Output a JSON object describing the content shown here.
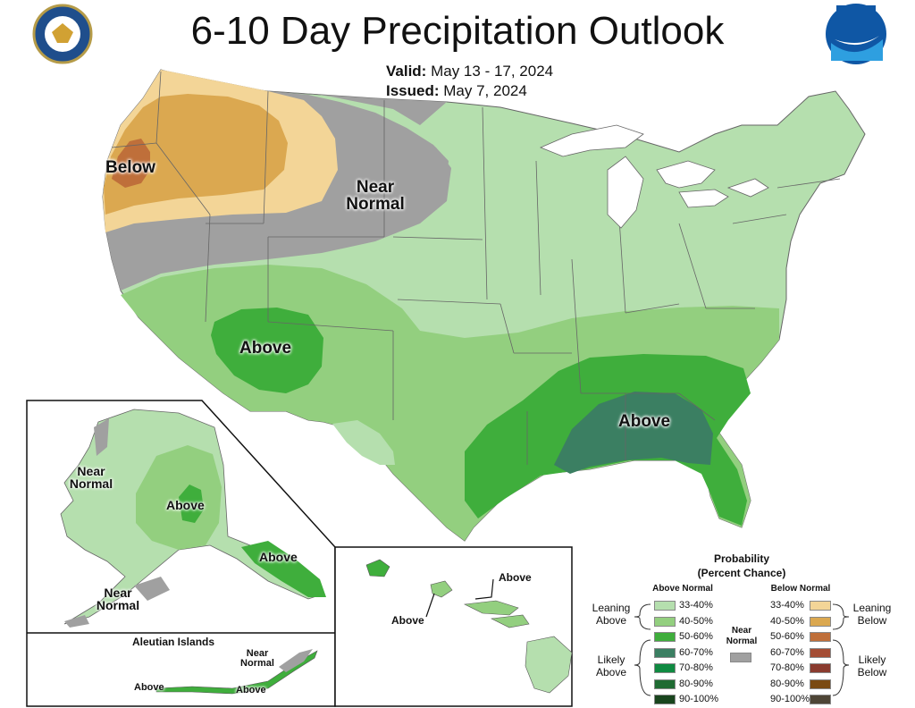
{
  "map": {
    "title": "6-10 Day Precipitation Outlook",
    "valid_label": "Valid:",
    "valid_value": "May 13 - 17, 2024",
    "issued_label": "Issued:",
    "issued_value": "May 7, 2024",
    "region_labels": {
      "west_below": "Below",
      "north_near_normal": "Near\nNormal",
      "southwest_above": "Above",
      "southeast_above": "Above",
      "alaska_near_normal_west": "Near\nNormal",
      "alaska_above_center": "Above",
      "alaska_above_panhandle": "Above",
      "alaska_near_normal_south": "Near\nNormal",
      "aleutian_title": "Aleutian Islands",
      "aleutian_near_normal": "Near\nNormal",
      "aleutian_above_left": "Above",
      "aleutian_above_right": "Above",
      "hawaii_above_right": "Above",
      "hawaii_above_left": "Above"
    },
    "colors": {
      "above_33_40": "#b5dfae",
      "above_40_50": "#93cf7f",
      "above_50_60": "#3fae3c",
      "above_60_70": "#3b7f62",
      "above_70_80": "#0f8a41",
      "above_80_90": "#1f6b32",
      "above_90_100": "#19451d",
      "below_33_40": "#f3d597",
      "below_40_50": "#dba850",
      "below_50_60": "#bf6f3a",
      "below_60_70": "#a44d35",
      "below_70_80": "#8a3b2f",
      "below_80_90": "#7a4a12",
      "below_90_100": "#4e4536",
      "near_normal": "#a0a0a0"
    }
  },
  "legend": {
    "title_line1": "Probability",
    "title_line2": "(Percent Chance)",
    "above_header": "Above Normal",
    "below_header": "Below Normal",
    "near_normal": "Near\nNormal",
    "leaning_above": "Leaning\nAbove",
    "likely_above": "Likely\nAbove",
    "leaning_below": "Leaning\nBelow",
    "likely_below": "Likely\nBelow",
    "ranges": [
      "33-40%",
      "40-50%",
      "50-60%",
      "60-70%",
      "70-80%",
      "80-90%",
      "90-100%"
    ]
  }
}
